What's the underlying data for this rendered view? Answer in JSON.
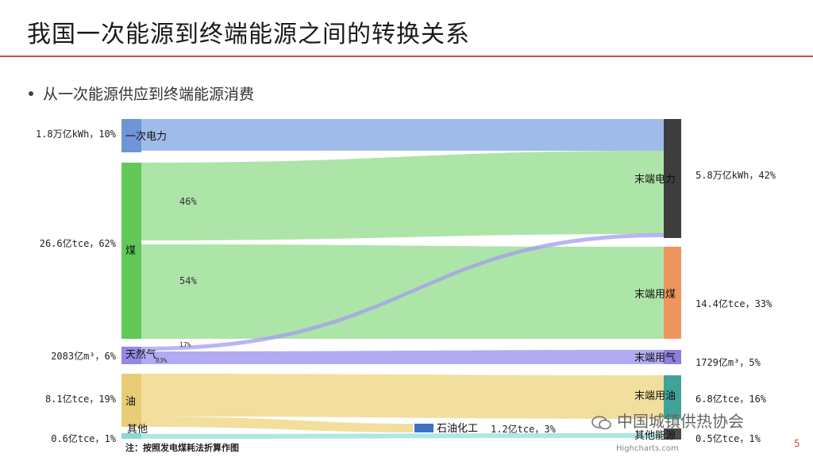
{
  "header": {
    "title": "我国一次能源到终端能源之间的转换关系",
    "subtitle": "从一次能源供应到终端能源消费"
  },
  "chart_data": {
    "type": "sankey",
    "sources": [
      {
        "id": "elec",
        "name": "一次电力",
        "value_label": "1.8万亿kWh，10%",
        "color": "#7fa5e0",
        "share": 10
      },
      {
        "id": "coal",
        "name": "煤",
        "value_label": "26.6亿tce，62%",
        "color": "#76d36e",
        "share": 62
      },
      {
        "id": "gas",
        "name": "天然气",
        "value_label": "2083亿m³，6%",
        "color": "#a49bf0",
        "share": 6
      },
      {
        "id": "oil",
        "name": "油",
        "value_label": "8.1亿tce，19%",
        "color": "#f0d98c",
        "share": 19
      },
      {
        "id": "other",
        "name": "其他",
        "value_label": "0.6亿tce，1%",
        "color": "#a4e6e0",
        "share": 1
      }
    ],
    "targets": [
      {
        "id": "t_elec",
        "name": "末端电力",
        "value_label": "5.8万亿kWh，42%",
        "color": "#3d3d3d",
        "share": 42
      },
      {
        "id": "t_coal",
        "name": "末端用煤",
        "value_label": "14.4亿tce，33%",
        "color": "#f0955d",
        "share": 33
      },
      {
        "id": "t_gas",
        "name": "末端用气",
        "value_label": "1729亿m³，5%",
        "color": "#8c7fe0",
        "share": 5
      },
      {
        "id": "t_oil",
        "name": "末端用油",
        "value_label": "6.8亿tce，16%",
        "color": "#3fa39a",
        "share": 16
      },
      {
        "id": "t_other",
        "name": "其他能源",
        "value_label": "0.5亿tce，1%",
        "color": "#4a4a4a",
        "share": 1
      }
    ],
    "midnodes": [
      {
        "id": "petro",
        "name": "石油化工",
        "value_label": "1.2亿tce，3%",
        "color": "#3f72c4"
      }
    ],
    "flow_labels": [
      {
        "text": "46%"
      },
      {
        "text": "54%"
      },
      {
        "text": "17%"
      },
      {
        "text": "83%"
      }
    ],
    "flows": [
      {
        "from": "elec",
        "to": "t_elec"
      },
      {
        "from": "coal",
        "to": "t_elec",
        "pct": "46%"
      },
      {
        "from": "coal",
        "to": "t_coal",
        "pct": "54%"
      },
      {
        "from": "gas",
        "to": "t_elec",
        "pct": "17%"
      },
      {
        "from": "gas",
        "to": "t_gas",
        "pct": "83%"
      },
      {
        "from": "oil",
        "to": "t_oil"
      },
      {
        "from": "oil",
        "to": "petro"
      },
      {
        "from": "other",
        "to": "t_other"
      }
    ]
  },
  "footer": {
    "note": "注：按照发电煤耗法折算作图",
    "credit": "Highcharts.com",
    "page": "5",
    "watermark": "中国城镇供热协会"
  }
}
